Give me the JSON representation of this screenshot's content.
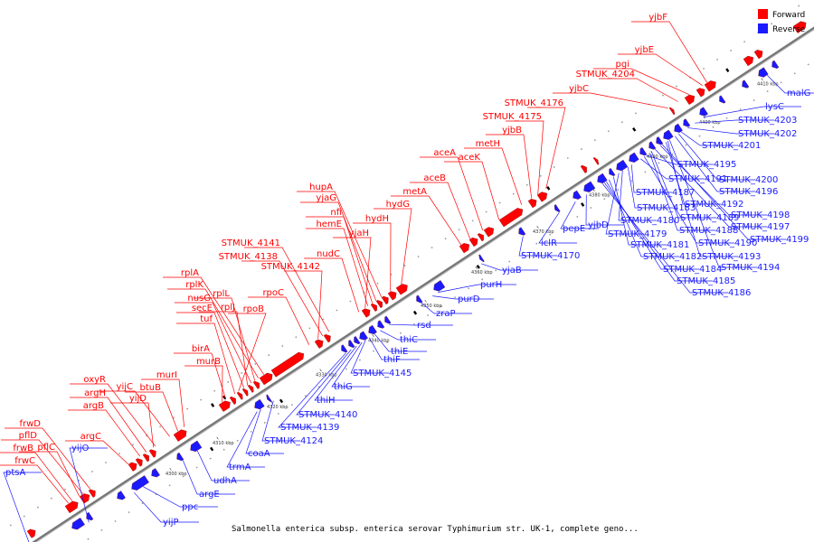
{
  "colors": {
    "forward": "#ff0000",
    "reverse": "#1a1aff",
    "backbone": "#777777",
    "other": "#000000"
  },
  "legend": {
    "forward_label": "Forward",
    "reverse_label": "Reverse"
  },
  "caption": "Salmonella enterica subsp. enterica serovar Typhimurium str. UK-1, complete geno...",
  "ticks": [
    "4300 kbp",
    "4310 kbp",
    "4320 kbp",
    "4330 kbp",
    "4340 kbp",
    "4350 kbp",
    "4360 kbp",
    "4370 kbp",
    "4380 kbp",
    "4390 kbp",
    "4400 kbp",
    "4410 kbp"
  ],
  "forward_labels": [
    "yjbF",
    "yjbE",
    "pgi",
    "STMUK_4204",
    "yjbC",
    "STMUK_4176",
    "STMUK_4175",
    "yjbB",
    "metH",
    "aceK",
    "aceA",
    "aceB",
    "metA",
    "hydG",
    "hydH",
    "hupA",
    "yjaG",
    "nfi",
    "hemE",
    "yjaH",
    "nudC",
    "STMUK_4141",
    "STMUK_4138",
    "STMUK_4142",
    "rpoC",
    "rplA",
    "rplK",
    "rplL",
    "nusG",
    "rplJ",
    "secE",
    "rpoB",
    "tuf",
    "birA",
    "murB",
    "murI",
    "btuB",
    "yijC",
    "oxyR",
    "yijD",
    "argH",
    "argB",
    "argC",
    "frwD",
    "pflD",
    "pflC",
    "frwB",
    "frwC"
  ],
  "reverse_labels": [
    "malG",
    "lysC",
    "STMUK_4203",
    "STMUK_4202",
    "STMUK_4201",
    "STMUK_4195",
    "STMUK_4191",
    "STMUK_4200",
    "STMUK_4187",
    "STMUK_4196",
    "STMUK_4192",
    "STMUK_4183",
    "STMUK_4198",
    "STMUK_4180",
    "STMUK_4189",
    "STMUK_4197",
    "STMUK_4179",
    "STMUK_4188",
    "STMUK_4199",
    "STMUK_4181",
    "STMUK_4190",
    "STMUK_4193",
    "STMUK_4182",
    "STMUK_4194",
    "STMUK_4184",
    "STMUK_4185",
    "STMUK_4186",
    "yjbD",
    "pepE",
    "iclR",
    "STMUK_4170",
    "yjaB",
    "purH",
    "purD",
    "zraP",
    "rsd",
    "thiC",
    "thiE",
    "thiF",
    "STMUK_4145",
    "thiG",
    "thiH",
    "STMUK_4140",
    "STMUK_4139",
    "STMUK_4124",
    "coaA",
    "trmA",
    "udhA",
    "argE",
    "ppc",
    "yijP",
    "yijO",
    "ptsA"
  ]
}
